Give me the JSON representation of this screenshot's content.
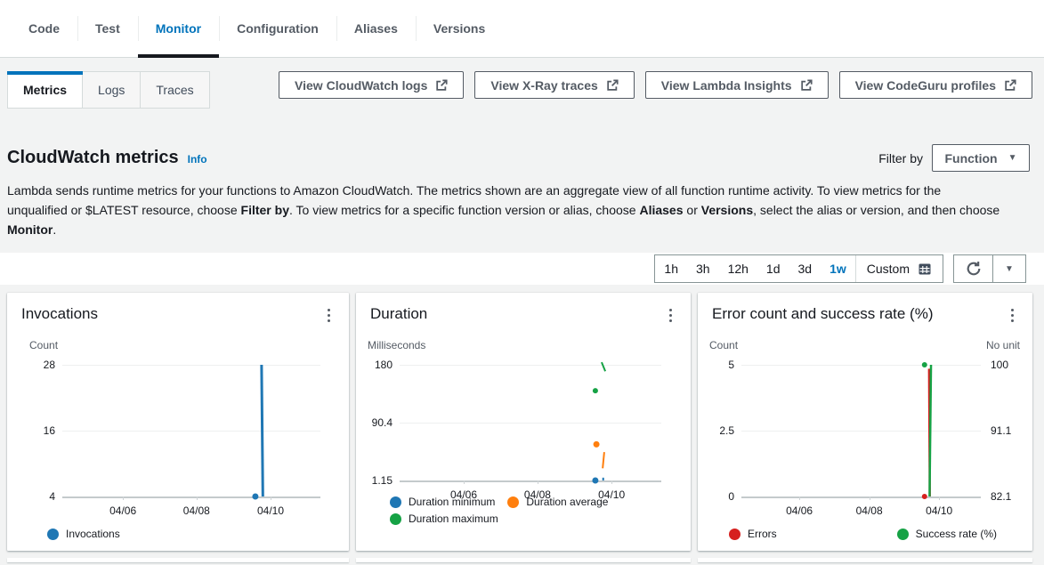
{
  "tabs": {
    "items": [
      {
        "label": "Code",
        "active": false
      },
      {
        "label": "Test",
        "active": false
      },
      {
        "label": "Monitor",
        "active": true
      },
      {
        "label": "Configuration",
        "active": false
      },
      {
        "label": "Aliases",
        "active": false
      },
      {
        "label": "Versions",
        "active": false
      }
    ]
  },
  "subtabs": {
    "items": [
      {
        "label": "Metrics",
        "active": true
      },
      {
        "label": "Logs",
        "active": false
      },
      {
        "label": "Traces",
        "active": false
      }
    ]
  },
  "action_buttons": [
    {
      "label": "View CloudWatch logs",
      "icon": "external-link-icon"
    },
    {
      "label": "View X-Ray traces",
      "icon": "external-link-icon"
    },
    {
      "label": "View Lambda Insights",
      "icon": "external-link-icon"
    },
    {
      "label": "View CodeGuru profiles",
      "icon": "external-link-icon"
    }
  ],
  "header": {
    "title": "CloudWatch metrics",
    "info_label": "Info",
    "filter_by_label": "Filter by",
    "filter_value": "Function"
  },
  "description_segments": [
    {
      "text": "Lambda sends runtime metrics for your functions to Amazon CloudWatch. The metrics shown are an aggregate view of all function runtime activity. To view metrics for the unqualified or $LATEST resource, choose ",
      "bold": false
    },
    {
      "text": "Filter by",
      "bold": true
    },
    {
      "text": ". To view metrics for a specific function version or alias, choose ",
      "bold": false
    },
    {
      "text": "Aliases",
      "bold": true
    },
    {
      "text": " or ",
      "bold": false
    },
    {
      "text": "Versions",
      "bold": true
    },
    {
      "text": ", select the alias or version, and then choose ",
      "bold": false
    },
    {
      "text": "Monitor",
      "bold": true
    },
    {
      "text": ".",
      "bold": false
    }
  ],
  "time_range": {
    "options": [
      "1h",
      "3h",
      "12h",
      "1d",
      "3d",
      "1w"
    ],
    "selected": "1w",
    "custom_label": "Custom",
    "custom_icon": "calendar-icon",
    "refresh_icon": "refresh-icon",
    "more_icon": "chevron-down-icon"
  },
  "colors": {
    "accent_blue": "#0073bb",
    "series_blue": "#1f77b4",
    "series_orange": "#ff7f0e",
    "series_green": "#16a245",
    "series_red": "#d6201f",
    "text_dark": "#16191f",
    "text_secondary": "#545b64",
    "page_bg": "#f2f3f3"
  },
  "chart_data": [
    {
      "type": "line",
      "title": "Invocations",
      "y_left": {
        "unit": "Count",
        "ticks": [
          28,
          16,
          4
        ]
      },
      "x_ticks": [
        {
          "label": "04/06",
          "pos": 0.235
        },
        {
          "label": "04/08",
          "pos": 0.52
        },
        {
          "label": "04/10",
          "pos": 0.807
        }
      ],
      "legend": [
        {
          "label": "Invocations",
          "color": "#1f77b4"
        }
      ],
      "marks": [
        {
          "type": "line",
          "color": "#1f77b4",
          "x1": 0.772,
          "x2": 0.777,
          "v1": 28,
          "v2": 4,
          "w": 3
        },
        {
          "type": "dot",
          "color": "#1f77b4",
          "x": 0.748,
          "v": 4,
          "r": 3.5
        }
      ]
    },
    {
      "type": "line",
      "title": "Duration",
      "y_left": {
        "unit": "Milliseconds",
        "ticks": [
          180,
          90.4,
          1.15
        ]
      },
      "x_ticks": [
        {
          "label": "04/06",
          "pos": 0.245
        },
        {
          "label": "04/08",
          "pos": 0.527
        },
        {
          "label": "04/10",
          "pos": 0.81
        }
      ],
      "legend": [
        {
          "label": "Duration minimum",
          "color": "#1f77b4"
        },
        {
          "label": "Duration average",
          "color": "#ff7f0e"
        },
        {
          "label": "Duration maximum",
          "color": "#16a245"
        }
      ],
      "marks": [
        {
          "type": "line",
          "color": "#16a245",
          "x1": 0.772,
          "x2": 0.786,
          "v1": 184,
          "v2": 170,
          "w": 2
        },
        {
          "type": "dot",
          "color": "#16a245",
          "x": 0.748,
          "v": 140,
          "r": 3
        },
        {
          "type": "dot",
          "color": "#ff7f0e",
          "x": 0.752,
          "v": 57,
          "r": 3.5
        },
        {
          "type": "line",
          "color": "#ff7f0e",
          "x1": 0.782,
          "x2": 0.776,
          "v1": 45,
          "v2": 20,
          "w": 2
        },
        {
          "type": "dot",
          "color": "#1f77b4",
          "x": 0.748,
          "v": 1.15,
          "r": 3.5
        },
        {
          "type": "line",
          "color": "#1f77b4",
          "x1": 0.778,
          "x2": 0.778,
          "v1": 5.5,
          "v2": 1.15,
          "w": 2
        }
      ]
    },
    {
      "type": "line",
      "title": "Error count and success rate (%)",
      "y_left": {
        "unit": "Count",
        "ticks": [
          5,
          2.5,
          0
        ]
      },
      "y_right": {
        "unit": "No unit",
        "ticks": [
          100,
          91.1,
          82.1
        ]
      },
      "x_ticks": [
        {
          "label": "04/06",
          "pos": 0.242
        },
        {
          "label": "04/08",
          "pos": 0.534
        },
        {
          "label": "04/10",
          "pos": 0.826
        }
      ],
      "legend": [
        {
          "label": "Errors",
          "color": "#d6201f"
        },
        {
          "label": "Success rate (%)",
          "color": "#16a245"
        }
      ],
      "marks": [
        {
          "type": "dot",
          "color": "#16a245",
          "x": 0.765,
          "v": 100,
          "axis": "right",
          "r": 3
        },
        {
          "type": "line",
          "color": "#d6201f",
          "x1": 0.784,
          "x2": 0.787,
          "v1": 4.85,
          "v2": 0,
          "w": 2.5
        },
        {
          "type": "line",
          "color": "#16a245",
          "x1": 0.792,
          "x2": 0.786,
          "v1": 100,
          "v2": 82.1,
          "axis": "right",
          "w": 2.5
        },
        {
          "type": "dot",
          "color": "#d6201f",
          "x": 0.765,
          "v": 0,
          "r": 3
        }
      ]
    }
  ]
}
